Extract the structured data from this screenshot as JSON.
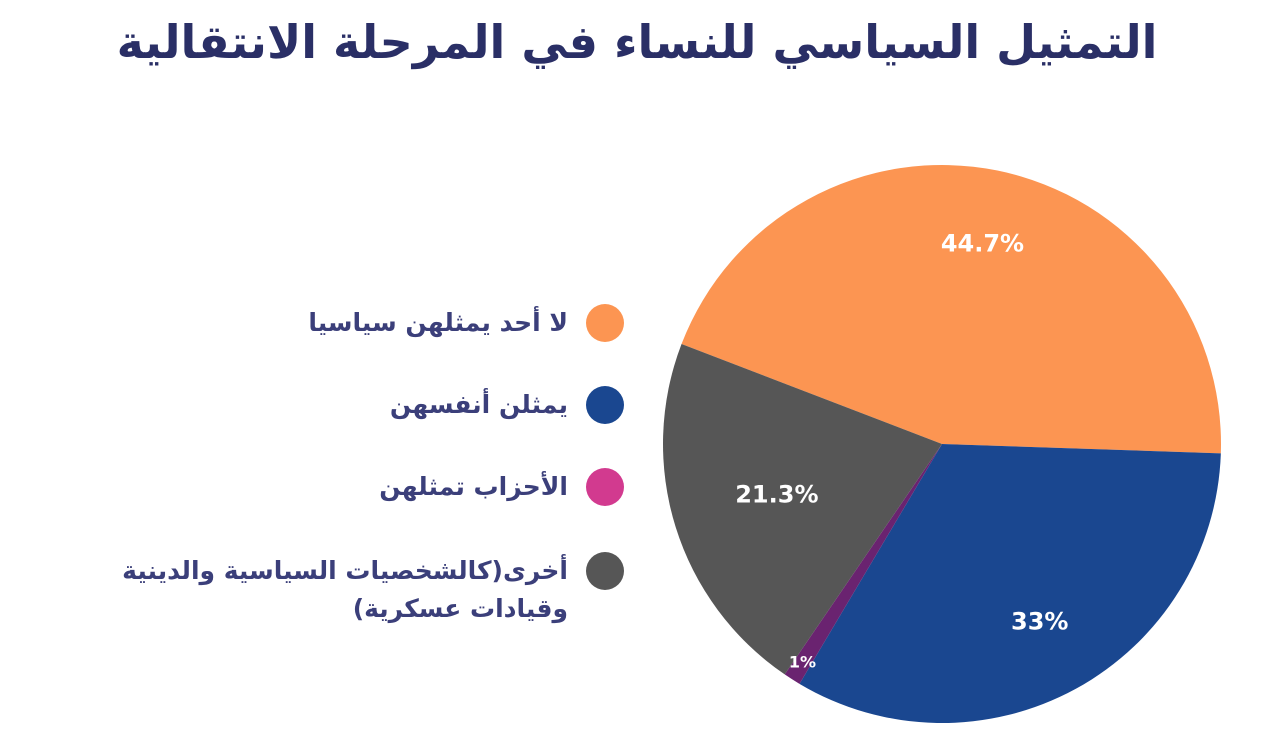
{
  "chart_data": {
    "type": "pie",
    "title": "التمثيل السياسي للنساء في المرحلة الانتقالية",
    "slices": [
      {
        "label": "لا أحد يمثلهن سياسيا",
        "value": 44.7,
        "display": "44.7%",
        "color": "#fc9552"
      },
      {
        "label": "يمثلن أنفسهن",
        "value": 33,
        "display": "33%",
        "color": "#1a4790"
      },
      {
        "label": "الأحزاب تمثلهن",
        "value": 1,
        "display": "1%",
        "color": "#6a2370"
      },
      {
        "label": "أخرى(كالشخصيات السياسية والدينية وقيادات عسكرية)",
        "value": 21.3,
        "display": "21.3%",
        "color": "#565656"
      }
    ],
    "legend": [
      {
        "label": "لا أحد يمثلهن سياسيا",
        "color": "#fc9552"
      },
      {
        "label": "يمثلن أنفسهن",
        "color": "#1a4790"
      },
      {
        "label": "الأحزاب تمثلهن",
        "color": "#d23a8f"
      },
      {
        "label": "أخرى(كالشخصيات السياسية والدينية وقيادات عسكرية)",
        "color": "#565656"
      }
    ],
    "legend_position": "left"
  }
}
